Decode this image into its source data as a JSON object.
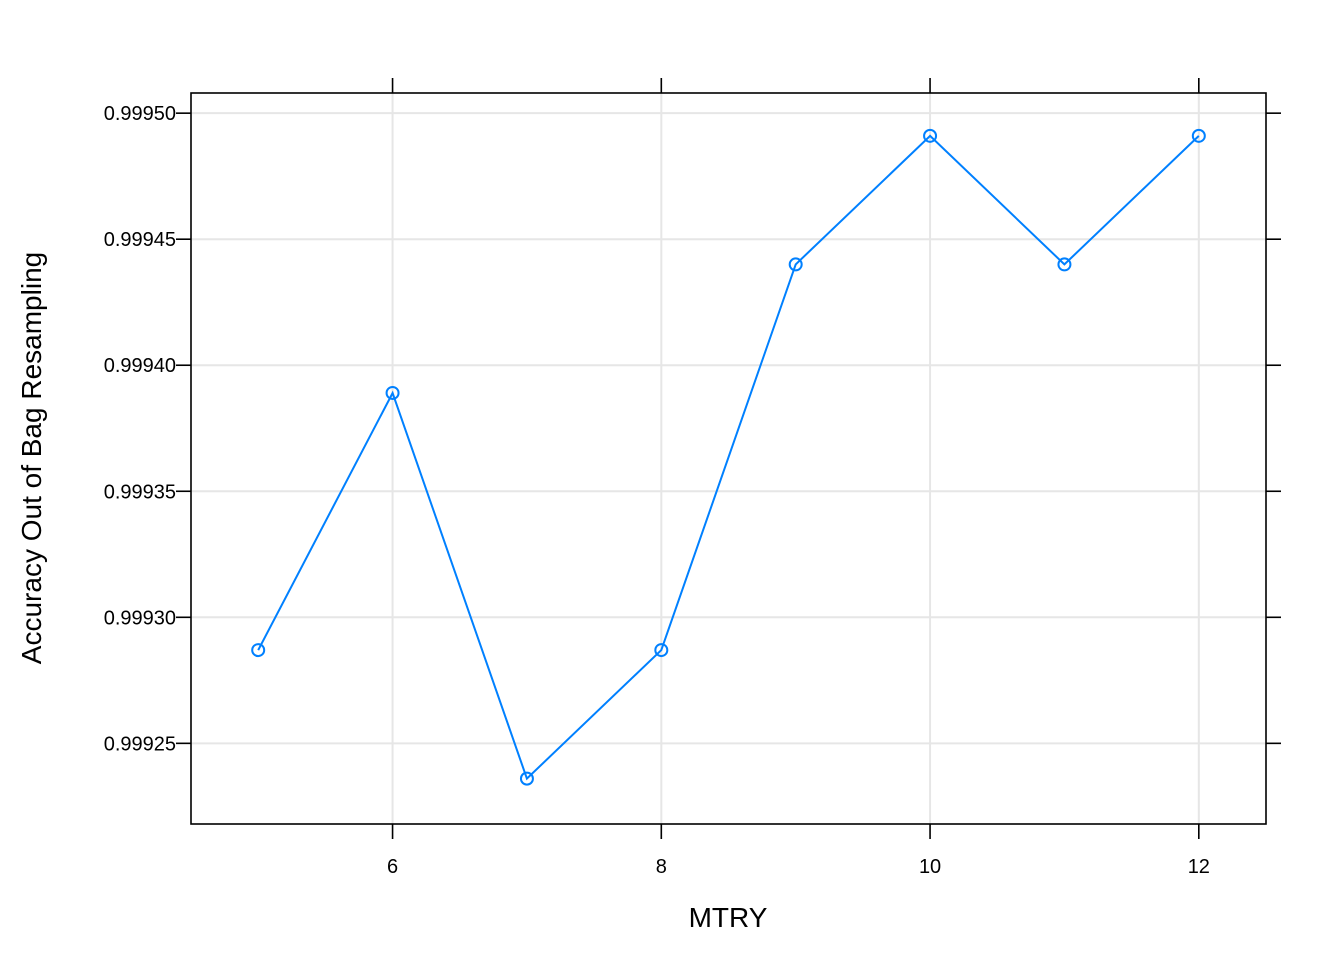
{
  "chart_data": {
    "type": "line",
    "xlabel": "MTRY",
    "ylabel": "Accuracy Out of Bag Resampling",
    "xlim": [
      4.5,
      12.5
    ],
    "ylim": [
      0.999218,
      0.999508
    ],
    "xticks": [
      6,
      8,
      10,
      12
    ],
    "xtick_labels": [
      "6",
      "8",
      "10",
      "12"
    ],
    "yticks": [
      0.99925,
      0.9993,
      0.99935,
      0.9994,
      0.99945,
      0.9995
    ],
    "ytick_labels": [
      "0.99925",
      "0.99930",
      "0.99935",
      "0.99940",
      "0.99945",
      "0.99950"
    ],
    "grid": true,
    "series": [
      {
        "x": [
          5,
          6,
          7,
          8,
          9,
          10,
          11,
          12
        ],
        "values": [
          0.999287,
          0.999389,
          0.999236,
          0.999287,
          0.99944,
          0.999491,
          0.99944,
          0.999491
        ],
        "color": "#0080ff",
        "marker": "open-circle"
      }
    ]
  }
}
